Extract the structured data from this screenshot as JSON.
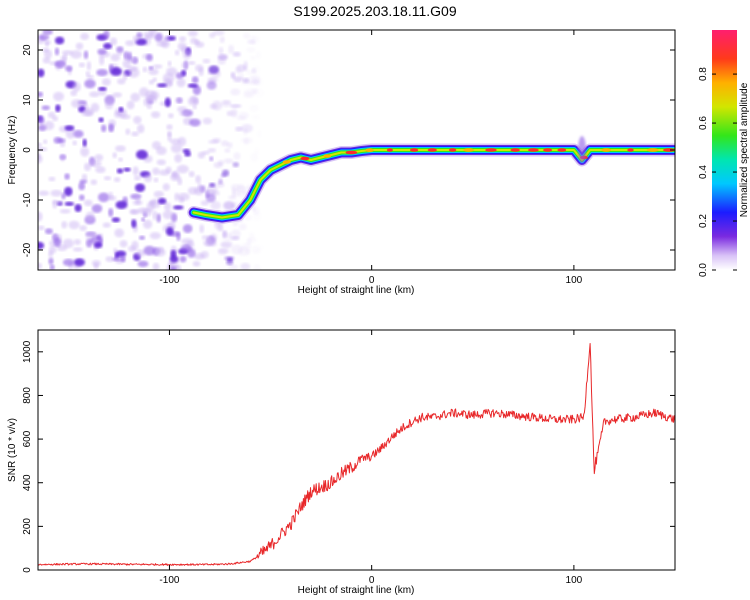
{
  "title": "S199.2025.203.18.11.G09",
  "colors": {
    "snr_line": "#e8282a",
    "spectro_noise": "#8c5ae6",
    "spectro_track_core": "#ff2a2a"
  },
  "chart_data": [
    {
      "type": "heatmap",
      "name": "spectrogram",
      "xlabel": "Height of straight line (km)",
      "ylabel": "Frequency (Hz)",
      "xlim": [
        -165,
        150
      ],
      "ylim": [
        -24,
        24
      ],
      "x_ticks": [
        -100,
        0,
        100
      ],
      "y_ticks": [
        -20,
        -10,
        0,
        10,
        20
      ],
      "colorbar": {
        "label": "Normalized spectral amplitude",
        "range": [
          0,
          0.98
        ],
        "ticks": [
          0.0,
          0.2,
          0.4,
          0.6,
          0.8
        ],
        "tick_labels": [
          "0.0",
          "0.2",
          "0.4",
          "0.6",
          "0.8"
        ],
        "colormap": "rainbow"
      },
      "track": {
        "description_points_x": [
          -88,
          -82,
          -74,
          -66,
          -60,
          -55,
          -50,
          -45,
          -40,
          -35,
          -30,
          -25,
          -20,
          -15,
          -10,
          -5,
          0,
          10,
          20,
          40,
          60,
          80,
          100,
          104,
          108,
          120,
          150
        ],
        "description_points_y": [
          -12.5,
          -13,
          -13.5,
          -13,
          -10,
          -6,
          -4,
          -3,
          -2,
          -1.5,
          -2,
          -1.5,
          -1,
          -0.5,
          -0.5,
          -0.2,
          0,
          0,
          0,
          0,
          0,
          0,
          0,
          -2,
          0,
          0,
          0
        ]
      },
      "noise_region_x": [
        -165,
        -60
      ]
    },
    {
      "type": "line",
      "name": "snr",
      "xlabel": "Height of straight line (km)",
      "ylabel": "SNR (10 * v/v)",
      "xlim": [
        -165,
        150
      ],
      "ylim": [
        0,
        1100
      ],
      "x_ticks": [
        -100,
        0,
        100
      ],
      "y_ticks": [
        0,
        200,
        400,
        600,
        800,
        1000
      ],
      "series": [
        {
          "color": "#e8282a",
          "x": [
            -165,
            -140,
            -120,
            -100,
            -80,
            -70,
            -60,
            -55,
            -50,
            -45,
            -40,
            -35,
            -30,
            -25,
            -20,
            -15,
            -10,
            -5,
            0,
            5,
            10,
            15,
            20,
            25,
            30,
            40,
            50,
            60,
            70,
            80,
            90,
            100,
            105,
            108,
            110,
            115,
            120,
            130,
            140,
            150
          ],
          "y": [
            25,
            28,
            26,
            25,
            25,
            28,
            40,
            70,
            110,
            160,
            210,
            290,
            360,
            380,
            400,
            440,
            470,
            510,
            520,
            560,
            610,
            650,
            680,
            700,
            700,
            720,
            710,
            720,
            710,
            700,
            690,
            690,
            700,
            1050,
            450,
            680,
            690,
            700,
            720,
            690
          ]
        }
      ]
    }
  ]
}
